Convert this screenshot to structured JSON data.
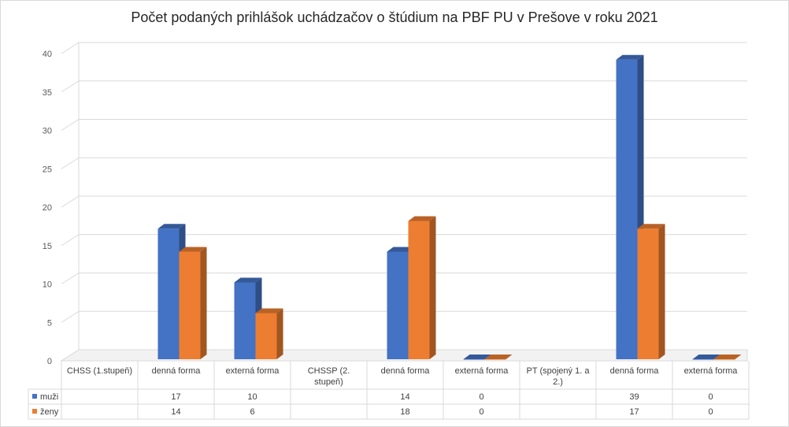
{
  "chart_data": {
    "type": "bar",
    "title": "Počet podaných prihlášok uchádzačov o štúdium na PBF PU v Prešove v roku 2021",
    "categories": [
      "CHSS (1.stupeň)",
      "denná forma",
      "externá forma",
      "CHSSP (2. stupeň)",
      "denná forma",
      "externá forma",
      "PT (spojený 1. a 2.)",
      "denná forma",
      "externá forma"
    ],
    "series": [
      {
        "name": "muži",
        "values": [
          null,
          17,
          10,
          null,
          14,
          0,
          null,
          39,
          0
        ],
        "color": "#4472c4"
      },
      {
        "name": "ženy",
        "values": [
          null,
          14,
          6,
          null,
          18,
          0,
          null,
          17,
          0
        ],
        "color": "#ed7d31"
      }
    ],
    "ylim": [
      0,
      40
    ],
    "yticks": [
      "0",
      "5",
      "10",
      "15",
      "20",
      "25",
      "30",
      "35",
      "40"
    ],
    "grid": true,
    "legend": "data-table",
    "style": "3d-clustered-column"
  }
}
